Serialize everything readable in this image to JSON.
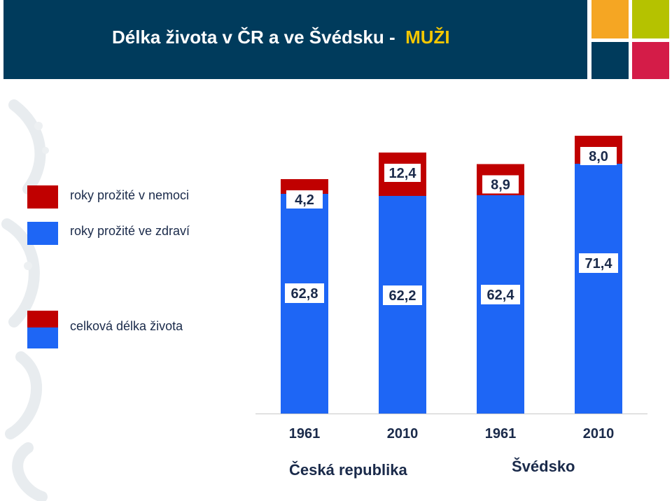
{
  "slide": {
    "title_main": "Délka života v ČR a ve Švédsku -",
    "title_highlight": "MUŽI"
  },
  "colors": {
    "sick": "#c00000",
    "healthy": "#1e66f5",
    "header": "#003b5c",
    "highlight": "#f4c700"
  },
  "legend": {
    "sick": "roky prožité v nemoci",
    "healthy": "roky prožité ve zdraví",
    "total": "celková délka života"
  },
  "groups": [
    "Česká republika",
    "Švédsko"
  ],
  "chart_data": {
    "type": "bar",
    "stacked": true,
    "categories": [
      "1961",
      "2010",
      "1961",
      "2010"
    ],
    "series": [
      {
        "name": "roky prožité ve zdraví",
        "values": [
          62.8,
          62.2,
          62.4,
          71.4
        ],
        "labels": [
          "62,8",
          "62,2",
          "62,4",
          "71,4"
        ]
      },
      {
        "name": "roky prožité v nemoci",
        "values": [
          4.2,
          12.4,
          8.9,
          8.0
        ],
        "labels": [
          "4,2",
          "12,4",
          "8,9",
          "8,0"
        ]
      }
    ]
  }
}
